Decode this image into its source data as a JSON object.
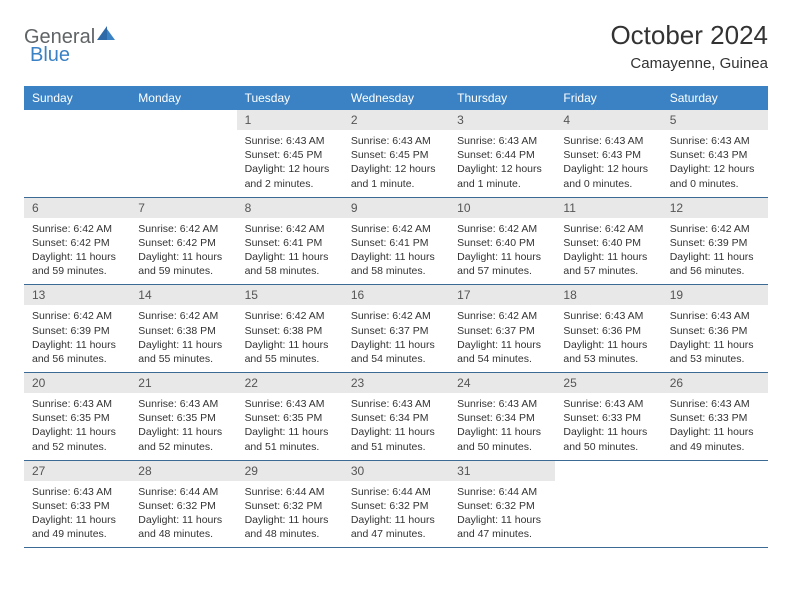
{
  "brand": {
    "general": "General",
    "blue": "Blue"
  },
  "title": "October 2024",
  "location": "Camayenne, Guinea",
  "colors": {
    "header_bg": "#3b82c4",
    "header_text": "#ffffff",
    "daynum_bg": "#e8e8e8",
    "daynum_text": "#555555",
    "body_text": "#333333",
    "rule": "#3b6a94"
  },
  "day_labels": [
    "Sunday",
    "Monday",
    "Tuesday",
    "Wednesday",
    "Thursday",
    "Friday",
    "Saturday"
  ],
  "weeks": [
    [
      null,
      null,
      {
        "n": "1",
        "sr": "Sunrise: 6:43 AM",
        "ss": "Sunset: 6:45 PM",
        "d1": "Daylight: 12 hours",
        "d2": "and 2 minutes."
      },
      {
        "n": "2",
        "sr": "Sunrise: 6:43 AM",
        "ss": "Sunset: 6:45 PM",
        "d1": "Daylight: 12 hours",
        "d2": "and 1 minute."
      },
      {
        "n": "3",
        "sr": "Sunrise: 6:43 AM",
        "ss": "Sunset: 6:44 PM",
        "d1": "Daylight: 12 hours",
        "d2": "and 1 minute."
      },
      {
        "n": "4",
        "sr": "Sunrise: 6:43 AM",
        "ss": "Sunset: 6:43 PM",
        "d1": "Daylight: 12 hours",
        "d2": "and 0 minutes."
      },
      {
        "n": "5",
        "sr": "Sunrise: 6:43 AM",
        "ss": "Sunset: 6:43 PM",
        "d1": "Daylight: 12 hours",
        "d2": "and 0 minutes."
      }
    ],
    [
      {
        "n": "6",
        "sr": "Sunrise: 6:42 AM",
        "ss": "Sunset: 6:42 PM",
        "d1": "Daylight: 11 hours",
        "d2": "and 59 minutes."
      },
      {
        "n": "7",
        "sr": "Sunrise: 6:42 AM",
        "ss": "Sunset: 6:42 PM",
        "d1": "Daylight: 11 hours",
        "d2": "and 59 minutes."
      },
      {
        "n": "8",
        "sr": "Sunrise: 6:42 AM",
        "ss": "Sunset: 6:41 PM",
        "d1": "Daylight: 11 hours",
        "d2": "and 58 minutes."
      },
      {
        "n": "9",
        "sr": "Sunrise: 6:42 AM",
        "ss": "Sunset: 6:41 PM",
        "d1": "Daylight: 11 hours",
        "d2": "and 58 minutes."
      },
      {
        "n": "10",
        "sr": "Sunrise: 6:42 AM",
        "ss": "Sunset: 6:40 PM",
        "d1": "Daylight: 11 hours",
        "d2": "and 57 minutes."
      },
      {
        "n": "11",
        "sr": "Sunrise: 6:42 AM",
        "ss": "Sunset: 6:40 PM",
        "d1": "Daylight: 11 hours",
        "d2": "and 57 minutes."
      },
      {
        "n": "12",
        "sr": "Sunrise: 6:42 AM",
        "ss": "Sunset: 6:39 PM",
        "d1": "Daylight: 11 hours",
        "d2": "and 56 minutes."
      }
    ],
    [
      {
        "n": "13",
        "sr": "Sunrise: 6:42 AM",
        "ss": "Sunset: 6:39 PM",
        "d1": "Daylight: 11 hours",
        "d2": "and 56 minutes."
      },
      {
        "n": "14",
        "sr": "Sunrise: 6:42 AM",
        "ss": "Sunset: 6:38 PM",
        "d1": "Daylight: 11 hours",
        "d2": "and 55 minutes."
      },
      {
        "n": "15",
        "sr": "Sunrise: 6:42 AM",
        "ss": "Sunset: 6:38 PM",
        "d1": "Daylight: 11 hours",
        "d2": "and 55 minutes."
      },
      {
        "n": "16",
        "sr": "Sunrise: 6:42 AM",
        "ss": "Sunset: 6:37 PM",
        "d1": "Daylight: 11 hours",
        "d2": "and 54 minutes."
      },
      {
        "n": "17",
        "sr": "Sunrise: 6:42 AM",
        "ss": "Sunset: 6:37 PM",
        "d1": "Daylight: 11 hours",
        "d2": "and 54 minutes."
      },
      {
        "n": "18",
        "sr": "Sunrise: 6:43 AM",
        "ss": "Sunset: 6:36 PM",
        "d1": "Daylight: 11 hours",
        "d2": "and 53 minutes."
      },
      {
        "n": "19",
        "sr": "Sunrise: 6:43 AM",
        "ss": "Sunset: 6:36 PM",
        "d1": "Daylight: 11 hours",
        "d2": "and 53 minutes."
      }
    ],
    [
      {
        "n": "20",
        "sr": "Sunrise: 6:43 AM",
        "ss": "Sunset: 6:35 PM",
        "d1": "Daylight: 11 hours",
        "d2": "and 52 minutes."
      },
      {
        "n": "21",
        "sr": "Sunrise: 6:43 AM",
        "ss": "Sunset: 6:35 PM",
        "d1": "Daylight: 11 hours",
        "d2": "and 52 minutes."
      },
      {
        "n": "22",
        "sr": "Sunrise: 6:43 AM",
        "ss": "Sunset: 6:35 PM",
        "d1": "Daylight: 11 hours",
        "d2": "and 51 minutes."
      },
      {
        "n": "23",
        "sr": "Sunrise: 6:43 AM",
        "ss": "Sunset: 6:34 PM",
        "d1": "Daylight: 11 hours",
        "d2": "and 51 minutes."
      },
      {
        "n": "24",
        "sr": "Sunrise: 6:43 AM",
        "ss": "Sunset: 6:34 PM",
        "d1": "Daylight: 11 hours",
        "d2": "and 50 minutes."
      },
      {
        "n": "25",
        "sr": "Sunrise: 6:43 AM",
        "ss": "Sunset: 6:33 PM",
        "d1": "Daylight: 11 hours",
        "d2": "and 50 minutes."
      },
      {
        "n": "26",
        "sr": "Sunrise: 6:43 AM",
        "ss": "Sunset: 6:33 PM",
        "d1": "Daylight: 11 hours",
        "d2": "and 49 minutes."
      }
    ],
    [
      {
        "n": "27",
        "sr": "Sunrise: 6:43 AM",
        "ss": "Sunset: 6:33 PM",
        "d1": "Daylight: 11 hours",
        "d2": "and 49 minutes."
      },
      {
        "n": "28",
        "sr": "Sunrise: 6:44 AM",
        "ss": "Sunset: 6:32 PM",
        "d1": "Daylight: 11 hours",
        "d2": "and 48 minutes."
      },
      {
        "n": "29",
        "sr": "Sunrise: 6:44 AM",
        "ss": "Sunset: 6:32 PM",
        "d1": "Daylight: 11 hours",
        "d2": "and 48 minutes."
      },
      {
        "n": "30",
        "sr": "Sunrise: 6:44 AM",
        "ss": "Sunset: 6:32 PM",
        "d1": "Daylight: 11 hours",
        "d2": "and 47 minutes."
      },
      {
        "n": "31",
        "sr": "Sunrise: 6:44 AM",
        "ss": "Sunset: 6:32 PM",
        "d1": "Daylight: 11 hours",
        "d2": "and 47 minutes."
      },
      null,
      null
    ]
  ]
}
